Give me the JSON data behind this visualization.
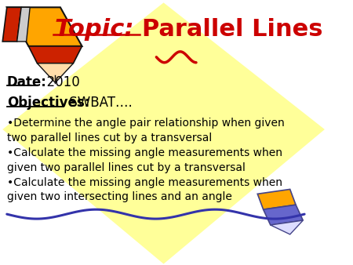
{
  "background_color": "#FFFFFF",
  "yellow_diamond_color": "#FFFF99",
  "title_topic": "Topic: ",
  "title_rest": "Parallel Lines",
  "title_color": "#CC0000",
  "date_label": "Date:",
  "date_value": "  2010",
  "objectives_label": "Objectives:",
  "objectives_value": " SWBAT….",
  "bullet1_line1": "•Determine the angle pair relationship when given",
  "bullet1_line2": "two parallel lines cut by a transversal",
  "bullet2_line1": "•Calculate the missing angle measurements when",
  "bullet2_line2": "given two parallel lines cut by a transversal",
  "bullet3_line1": "•Calculate the missing angle measurements when",
  "bullet3_line2": "given two intersecting lines and an angle",
  "text_color": "#000000",
  "font_size_title": 22,
  "font_size_body": 10,
  "font_size_date": 12,
  "font_size_obj": 12,
  "pencil_orange": "#FFA500",
  "pencil_red": "#CC2200",
  "pencil_dark": "#111111",
  "pencil_skin": "#FFDDAA",
  "blue_pencil": "#6666CC",
  "blue_line": "#3333AA"
}
